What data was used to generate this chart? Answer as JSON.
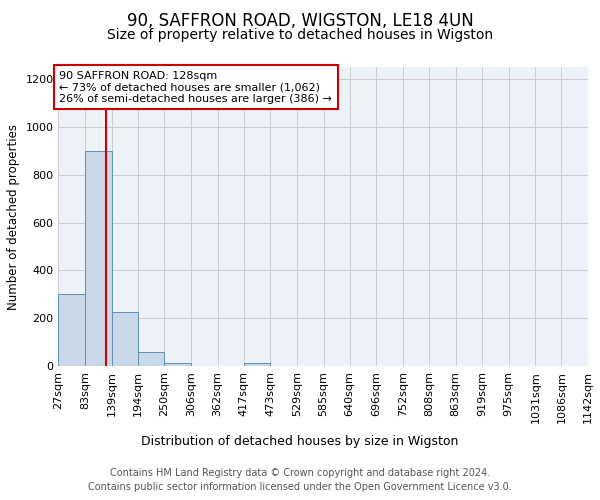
{
  "title1": "90, SAFFRON ROAD, WIGSTON, LE18 4UN",
  "title2": "Size of property relative to detached houses in Wigston",
  "xlabel": "Distribution of detached houses by size in Wigston",
  "ylabel": "Number of detached properties",
  "bin_edges": [
    27,
    83,
    139,
    194,
    250,
    306,
    362,
    417,
    473,
    529,
    585,
    640,
    696,
    752,
    808,
    863,
    919,
    975,
    1031,
    1086,
    1142
  ],
  "bar_heights": [
    300,
    900,
    225,
    60,
    15,
    0,
    0,
    15,
    0,
    0,
    0,
    0,
    0,
    0,
    0,
    0,
    0,
    0,
    0,
    0
  ],
  "bar_color": "#c8d8e8",
  "bar_edge_color": "#6090b0",
  "grid_color": "#cccccc",
  "bg_color": "#edf2fa",
  "red_line_x": 128,
  "red_line_color": "#cc0000",
  "annotation_line1": "90 SAFFRON ROAD: 128sqm",
  "annotation_line2": "← 73% of detached houses are smaller (1,062)",
  "annotation_line3": "26% of semi-detached houses are larger (386) →",
  "annotation_box_color": "#cc0000",
  "ylim": [
    0,
    1250
  ],
  "yticks": [
    0,
    200,
    400,
    600,
    800,
    1000,
    1200
  ],
  "footer1": "Contains HM Land Registry data © Crown copyright and database right 2024.",
  "footer2": "Contains public sector information licensed under the Open Government Licence v3.0.",
  "title1_fontsize": 12,
  "title2_fontsize": 10,
  "xlabel_fontsize": 9,
  "ylabel_fontsize": 8.5,
  "tick_fontsize": 8,
  "annotation_fontsize": 8,
  "footer_fontsize": 7
}
